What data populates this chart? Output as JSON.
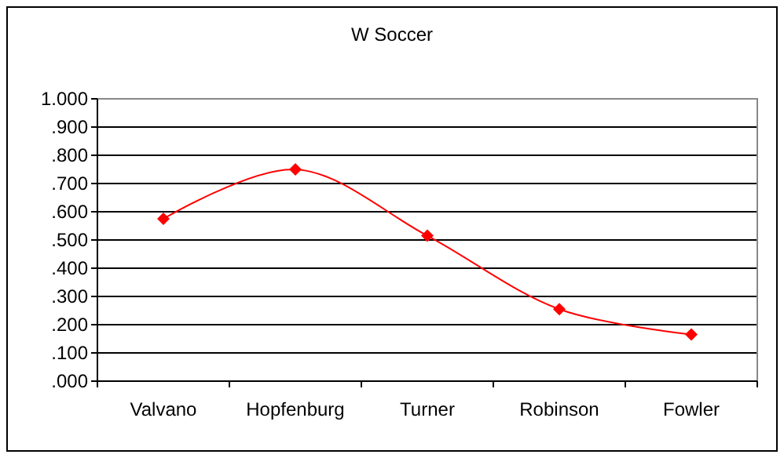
{
  "chart_data": {
    "type": "line",
    "title": "W Soccer",
    "categories": [
      "Valvano",
      "Hopfenburg",
      "Turner",
      "Robinson",
      "Fowler"
    ],
    "series": [
      {
        "color": "#ff0000",
        "values": [
          0.575,
          0.75,
          0.515,
          0.255,
          0.165
        ]
      }
    ],
    "ylim": [
      0,
      1
    ],
    "yticks": [
      {
        "value": 0,
        "label": ".000"
      },
      {
        "value": 0.1,
        "label": ".100"
      },
      {
        "value": 0.2,
        "label": ".200"
      },
      {
        "value": 0.3,
        "label": ".300"
      },
      {
        "value": 0.4,
        "label": ".400"
      },
      {
        "value": 0.5,
        "label": ".500"
      },
      {
        "value": 0.6,
        "label": ".600"
      },
      {
        "value": 0.7,
        "label": ".700"
      },
      {
        "value": 0.8,
        "label": ".800"
      },
      {
        "value": 0.9,
        "label": ".900"
      },
      {
        "value": 1,
        "label": "1.000"
      }
    ],
    "grid": "y",
    "marker": "diamond",
    "line_style": "solid"
  }
}
